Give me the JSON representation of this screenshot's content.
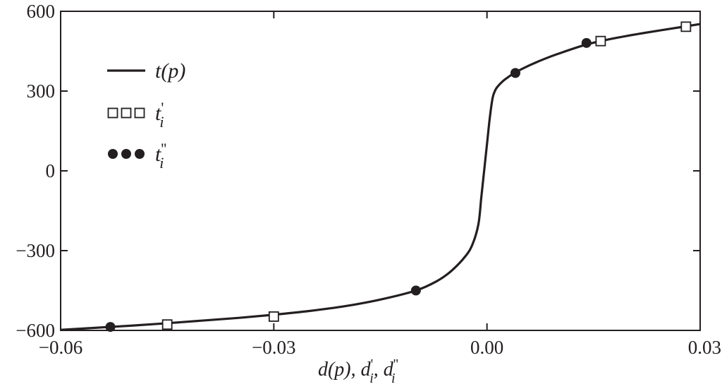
{
  "chart_data": {
    "type": "line",
    "xlabel": "d(p), d'i, d''i",
    "ylabel": "",
    "title": "",
    "xlim": [
      -0.06,
      0.03
    ],
    "ylim": [
      -600,
      600
    ],
    "xticks": [
      -0.06,
      -0.03,
      0.0,
      0.03
    ],
    "xtick_labels": [
      "−0.06",
      "−0.03",
      "0.00",
      "0.03"
    ],
    "yticks": [
      600,
      300,
      0,
      -300,
      -600
    ],
    "ytick_labels": [
      "600",
      "300",
      "0",
      "−300",
      "−600"
    ],
    "grid": false,
    "legend": {
      "placement": "top-left",
      "entries": [
        {
          "label": "t(p)",
          "base": "t",
          "arg": "(p)",
          "marker": "line"
        },
        {
          "label": "t'i",
          "base": "t",
          "prime": "'",
          "sub": "i",
          "marker": "open-square"
        },
        {
          "label": "t''i",
          "base": "t",
          "prime": "''",
          "sub": "i",
          "marker": "filled-circle"
        }
      ]
    },
    "series": [
      {
        "name": "t(p)",
        "style": "line",
        "color": "#231f20",
        "x": [
          -0.06,
          -0.055,
          -0.05,
          -0.045,
          -0.04,
          -0.035,
          -0.03,
          -0.025,
          -0.02,
          -0.015,
          -0.01,
          -0.007,
          -0.005,
          -0.003,
          -0.002,
          -0.0012,
          -0.0008,
          -0.0004,
          0.0,
          0.0004,
          0.0008,
          0.0012,
          0.0016,
          0.0025,
          0.004,
          0.006,
          0.008,
          0.01,
          0.014,
          0.018,
          0.022,
          0.026,
          0.03
        ],
        "y": [
          -598,
          -590,
          -582,
          -573,
          -563,
          -553,
          -541,
          -527,
          -509,
          -484,
          -450,
          -414,
          -376,
          -320,
          -274,
          -200,
          -100,
          0,
          100,
          200,
          275,
          305,
          320,
          343,
          370,
          397,
          420,
          440,
          475,
          499,
          518,
          535,
          552
        ]
      },
      {
        "name": "t'i",
        "style": "open-square",
        "color": "#231f20",
        "x": [
          -0.045,
          -0.03,
          0.016,
          0.028
        ],
        "y": [
          -578,
          -548,
          488,
          542
        ]
      },
      {
        "name": "t''i",
        "style": "filled-circle",
        "color": "#231f20",
        "x": [
          -0.053,
          -0.01,
          0.004,
          0.014
        ],
        "y": [
          -587,
          -450,
          368,
          481
        ]
      }
    ]
  }
}
